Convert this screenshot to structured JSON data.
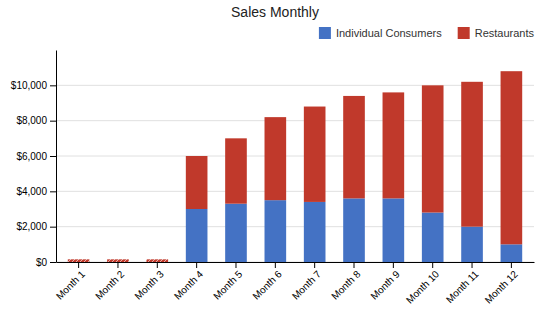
{
  "chart_data": {
    "type": "bar",
    "title": "Sales Monthly",
    "categories": [
      "Month 1",
      "Month 2",
      "Month 3",
      "Month 4",
      "Month 5",
      "Month 6",
      "Month 7",
      "Month 8",
      "Month 9",
      "Month 10",
      "Month 11",
      "Month 12"
    ],
    "series": [
      {
        "name": "Individual Consumers",
        "color": "#4472C4",
        "values": [
          0,
          0,
          0,
          3000,
          3300,
          3500,
          3400,
          3600,
          3600,
          2800,
          2000,
          1000
        ]
      },
      {
        "name": "Restaurants",
        "color": "#C0392B",
        "values": [
          0,
          0,
          0,
          3000,
          3700,
          4700,
          5400,
          5800,
          6000,
          7200,
          8200,
          9800
        ]
      },
      {
        "color": "#C0392B",
        "values": [
          150,
          150,
          150,
          null,
          null,
          null,
          null,
          null,
          null,
          null,
          null,
          null
        ]
      }
    ],
    "stacked": true,
    "ylim": [
      0,
      12000
    ],
    "yticks": [
      {
        "value": 0,
        "label": "$0"
      },
      {
        "value": 2000,
        "label": "$2,000"
      },
      {
        "value": 4000,
        "label": "$4,000"
      },
      {
        "value": 6000,
        "label": "$6,000"
      },
      {
        "value": 8000,
        "label": "$8,000"
      },
      {
        "value": 10000,
        "label": "$10,000"
      }
    ],
    "grid": true,
    "legend": "upper right"
  }
}
